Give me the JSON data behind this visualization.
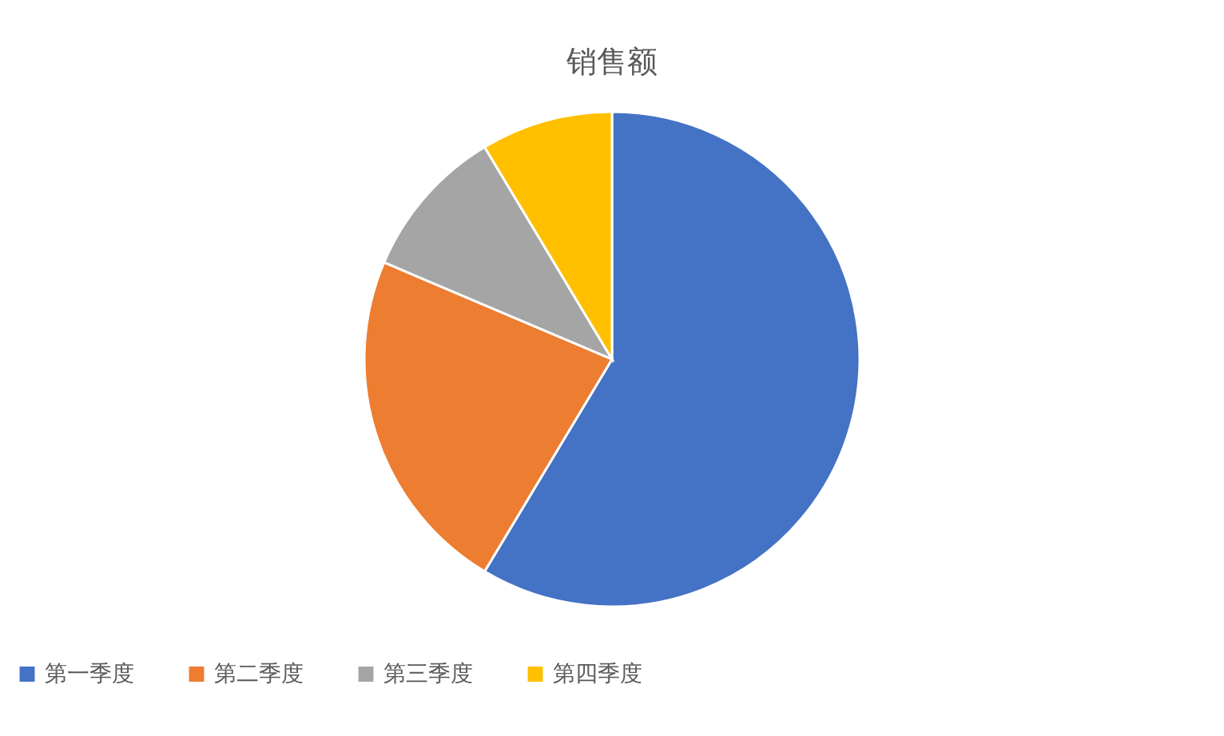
{
  "chart_data": {
    "type": "pie",
    "title": "销售额",
    "categories": [
      "第一季度",
      "第二季度",
      "第三季度",
      "第四季度"
    ],
    "values": [
      58.6,
      22.8,
      10.0,
      8.6
    ],
    "colors": [
      "#4472c4",
      "#ed7d31",
      "#a5a5a5",
      "#ffc000"
    ],
    "legend": "bottom"
  }
}
